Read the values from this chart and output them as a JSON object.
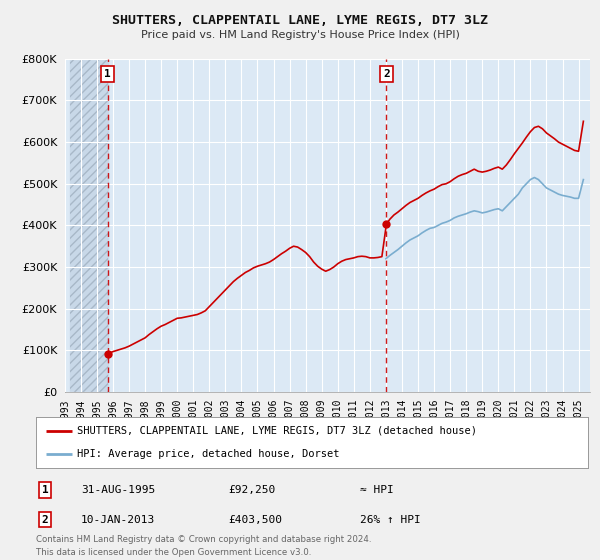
{
  "title": "SHUTTERS, CLAPPENTAIL LANE, LYME REGIS, DT7 3LZ",
  "subtitle": "Price paid vs. HM Land Registry's House Price Index (HPI)",
  "legend_line1": "SHUTTERS, CLAPPENTAIL LANE, LYME REGIS, DT7 3LZ (detached house)",
  "legend_line2": "HPI: Average price, detached house, Dorset",
  "sale1_label": "1",
  "sale1_date": "31-AUG-1995",
  "sale1_price": "£92,250",
  "sale1_hpi": "≈ HPI",
  "sale2_label": "2",
  "sale2_date": "10-JAN-2013",
  "sale2_price": "£403,500",
  "sale2_hpi": "26% ↑ HPI",
  "footer": "Contains HM Land Registry data © Crown copyright and database right 2024.\nThis data is licensed under the Open Government Licence v3.0.",
  "red_color": "#cc0000",
  "blue_color": "#7aadcf",
  "plot_bg": "#dce9f5",
  "bg_color": "#f0f0f0",
  "grid_color": "#ffffff",
  "ylim": [
    0,
    800000
  ],
  "yticks": [
    0,
    100000,
    200000,
    300000,
    400000,
    500000,
    600000,
    700000,
    800000
  ],
  "xlim_start": 1993.3,
  "xlim_end": 2025.7,
  "xticks": [
    1993,
    1994,
    1995,
    1996,
    1997,
    1998,
    1999,
    2000,
    2001,
    2002,
    2003,
    2004,
    2005,
    2006,
    2007,
    2008,
    2009,
    2010,
    2011,
    2012,
    2013,
    2014,
    2015,
    2016,
    2017,
    2018,
    2019,
    2020,
    2021,
    2022,
    2023,
    2024,
    2025
  ],
  "sale1_x": 1995.667,
  "sale1_y": 92250,
  "sale2_x": 2013.033,
  "sale2_y": 403500,
  "hpi_start_x": 2013.033,
  "hpi_years": [
    2013.0,
    2013.25,
    2013.5,
    2013.75,
    2014.0,
    2014.25,
    2014.5,
    2014.75,
    2015.0,
    2015.25,
    2015.5,
    2015.75,
    2016.0,
    2016.25,
    2016.5,
    2016.75,
    2017.0,
    2017.25,
    2017.5,
    2017.75,
    2018.0,
    2018.25,
    2018.5,
    2018.75,
    2019.0,
    2019.25,
    2019.5,
    2019.75,
    2020.0,
    2020.25,
    2020.5,
    2020.75,
    2021.0,
    2021.25,
    2021.5,
    2021.75,
    2022.0,
    2022.25,
    2022.5,
    2022.75,
    2023.0,
    2023.25,
    2023.5,
    2023.75,
    2024.0,
    2024.25,
    2024.5,
    2024.75,
    2025.0,
    2025.3
  ],
  "hpi_values": [
    320000,
    328000,
    335000,
    342000,
    350000,
    358000,
    365000,
    370000,
    375000,
    382000,
    388000,
    393000,
    395000,
    400000,
    405000,
    408000,
    412000,
    418000,
    422000,
    425000,
    428000,
    432000,
    435000,
    433000,
    430000,
    432000,
    435000,
    438000,
    440000,
    435000,
    445000,
    455000,
    465000,
    475000,
    490000,
    500000,
    510000,
    515000,
    510000,
    500000,
    490000,
    485000,
    480000,
    475000,
    472000,
    470000,
    468000,
    465000,
    465000,
    510000
  ],
  "red_line_years": [
    1995.667,
    1995.75,
    1996.0,
    1996.25,
    1996.5,
    1996.75,
    1997.0,
    1997.25,
    1997.5,
    1997.75,
    1998.0,
    1998.25,
    1998.5,
    1998.75,
    1999.0,
    1999.25,
    1999.5,
    1999.75,
    2000.0,
    2000.25,
    2000.5,
    2000.75,
    2001.0,
    2001.25,
    2001.5,
    2001.75,
    2002.0,
    2002.25,
    2002.5,
    2002.75,
    2003.0,
    2003.25,
    2003.5,
    2003.75,
    2004.0,
    2004.25,
    2004.5,
    2004.75,
    2005.0,
    2005.25,
    2005.5,
    2005.75,
    2006.0,
    2006.25,
    2006.5,
    2006.75,
    2007.0,
    2007.25,
    2007.5,
    2007.75,
    2008.0,
    2008.25,
    2008.5,
    2008.75,
    2009.0,
    2009.25,
    2009.5,
    2009.75,
    2010.0,
    2010.25,
    2010.5,
    2010.75,
    2011.0,
    2011.25,
    2011.5,
    2011.75,
    2012.0,
    2012.25,
    2012.5,
    2012.75,
    2013.033,
    2013.25,
    2013.5,
    2013.75,
    2014.0,
    2014.25,
    2014.5,
    2014.75,
    2015.0,
    2015.25,
    2015.5,
    2015.75,
    2016.0,
    2016.25,
    2016.5,
    2016.75,
    2017.0,
    2017.25,
    2017.5,
    2017.75,
    2018.0,
    2018.25,
    2018.5,
    2018.75,
    2019.0,
    2019.25,
    2019.5,
    2019.75,
    2020.0,
    2020.25,
    2020.5,
    2020.75,
    2021.0,
    2021.25,
    2021.5,
    2021.75,
    2022.0,
    2022.25,
    2022.5,
    2022.75,
    2023.0,
    2023.25,
    2023.5,
    2023.75,
    2024.0,
    2024.25,
    2024.5,
    2024.75,
    2025.0,
    2025.3
  ],
  "red_line_values": [
    92250,
    93000,
    97000,
    100000,
    103000,
    106000,
    110000,
    115000,
    120000,
    125000,
    130000,
    138000,
    145000,
    152000,
    158000,
    162000,
    167000,
    172000,
    177000,
    178000,
    180000,
    182000,
    184000,
    186000,
    190000,
    195000,
    205000,
    215000,
    225000,
    235000,
    245000,
    255000,
    265000,
    273000,
    280000,
    287000,
    292000,
    298000,
    302000,
    305000,
    308000,
    312000,
    318000,
    325000,
    332000,
    338000,
    345000,
    350000,
    348000,
    342000,
    335000,
    325000,
    312000,
    302000,
    295000,
    290000,
    294000,
    300000,
    308000,
    314000,
    318000,
    320000,
    322000,
    325000,
    326000,
    325000,
    322000,
    322000,
    323000,
    325000,
    403500,
    415000,
    425000,
    432000,
    440000,
    448000,
    455000,
    460000,
    465000,
    472000,
    478000,
    483000,
    487000,
    493000,
    498000,
    500000,
    505000,
    512000,
    518000,
    522000,
    525000,
    530000,
    535000,
    530000,
    528000,
    530000,
    533000,
    537000,
    540000,
    535000,
    545000,
    558000,
    572000,
    585000,
    598000,
    612000,
    625000,
    635000,
    638000,
    632000,
    622000,
    615000,
    608000,
    600000,
    595000,
    590000,
    585000,
    580000,
    578000,
    650000
  ]
}
